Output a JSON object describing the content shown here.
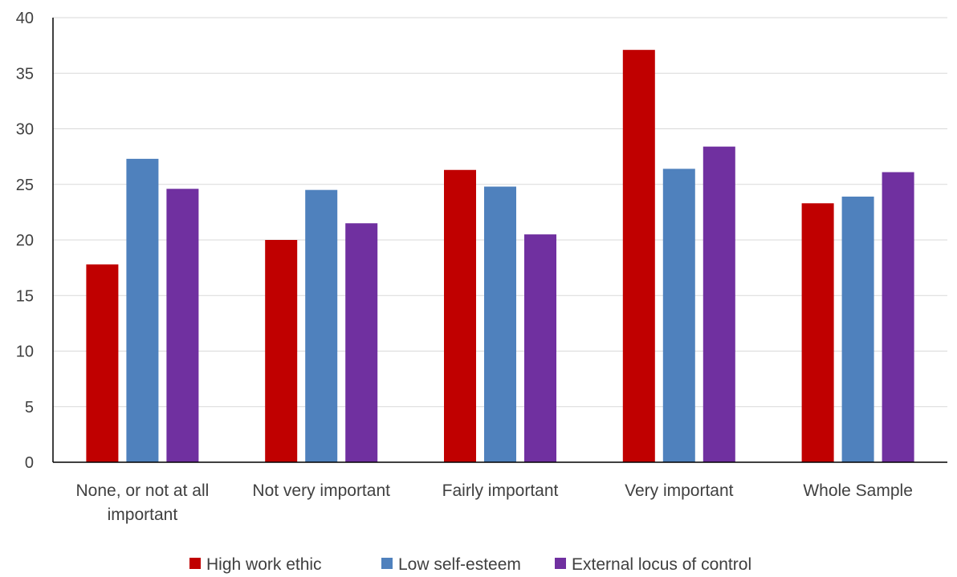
{
  "chart_data": {
    "type": "bar",
    "title": "",
    "xlabel": "",
    "ylabel": "",
    "ylim": [
      0,
      40
    ],
    "yticks": [
      0,
      5,
      10,
      15,
      20,
      25,
      30,
      35,
      40
    ],
    "grid": true,
    "legend_position": "bottom",
    "categories": [
      [
        "None, or not at all",
        "important"
      ],
      [
        "Not very important"
      ],
      [
        "Fairly important"
      ],
      [
        "Very important"
      ],
      [
        "Whole Sample"
      ]
    ],
    "series": [
      {
        "name": "High work ethic",
        "color": "#c00000",
        "values": [
          17.8,
          20.0,
          26.3,
          37.1,
          23.3
        ]
      },
      {
        "name": "Low self-esteem",
        "color": "#4f81bd",
        "values": [
          27.3,
          24.5,
          24.8,
          26.4,
          23.9
        ]
      },
      {
        "name": "External locus of control",
        "color": "#7030a0",
        "values": [
          24.6,
          21.5,
          20.5,
          28.4,
          26.1
        ]
      }
    ]
  }
}
